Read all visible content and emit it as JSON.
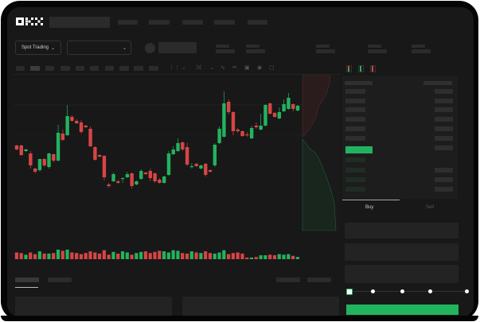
{
  "brand": {
    "logo": "OKX"
  },
  "market_selector": {
    "label": "Spot Trading",
    "icon": "chevron-down-icon"
  },
  "pair_selector": {
    "icon": "chevron-down-icon"
  },
  "order_panel": {
    "tabs": [
      "Buy",
      "Sell"
    ],
    "active_tab": "Buy",
    "slider_percent": 0,
    "slider_stops": 5
  },
  "colors": {
    "up": "#22b35e",
    "down": "#d64545",
    "background": "#181818",
    "accent": "#22b35e"
  },
  "toolbar_icons": [
    "candles-icon",
    "indicator-icon",
    "chevron-down-icon",
    "line-icon",
    "pencil-icon",
    "camera-icon",
    "settings-icon",
    "fullscreen-icon"
  ],
  "orderbook_view_icons": [
    "orderbook-both-icon",
    "orderbook-bids-icon",
    "orderbook-asks-icon"
  ],
  "chart_data": {
    "type": "candlestick",
    "candles": [
      [
        67,
        62,
        68,
        61
      ],
      [
        67,
        55,
        68,
        54
      ],
      [
        60,
        62,
        63,
        59
      ],
      [
        57,
        42,
        60,
        38
      ],
      [
        38,
        34,
        39,
        32
      ],
      [
        36,
        50,
        50,
        34
      ],
      [
        50,
        42,
        51,
        40
      ],
      [
        40,
        57,
        58,
        38
      ],
      [
        56,
        48,
        57,
        46
      ],
      [
        48,
        83,
        93,
        47
      ],
      [
        82,
        74,
        87,
        73
      ],
      [
        80,
        104,
        118,
        79
      ],
      [
        103,
        98,
        105,
        97
      ],
      [
        98,
        95,
        100,
        94
      ],
      [
        96,
        84,
        99,
        82
      ],
      [
        92,
        90,
        93,
        89
      ],
      [
        88,
        66,
        91,
        65
      ],
      [
        65,
        49,
        66,
        48
      ],
      [
        55,
        53,
        56,
        52
      ],
      [
        54,
        27,
        55,
        23
      ],
      [
        18,
        16,
        20,
        14
      ],
      [
        22,
        31,
        33,
        21
      ],
      [
        22,
        20,
        24,
        19
      ],
      [
        25,
        26,
        27,
        20
      ],
      [
        27,
        31,
        34,
        26
      ],
      [
        32,
        16,
        33,
        13
      ],
      [
        18,
        22,
        23,
        17
      ],
      [
        25,
        35,
        37,
        24
      ],
      [
        33,
        31,
        34,
        30
      ],
      [
        35,
        26,
        38,
        22
      ],
      [
        32,
        22,
        33,
        20
      ],
      [
        24,
        20,
        26,
        19
      ],
      [
        20,
        28,
        29,
        19
      ],
      [
        30,
        57,
        60,
        29
      ],
      [
        56,
        62,
        66,
        55
      ],
      [
        60,
        70,
        76,
        59
      ],
      [
        71,
        62,
        72,
        60
      ],
      [
        65,
        43,
        70,
        41
      ],
      [
        40,
        41,
        45,
        38
      ],
      [
        44,
        41,
        45,
        40
      ],
      [
        38,
        42,
        43,
        37
      ],
      [
        44,
        30,
        45,
        28
      ],
      [
        36,
        34,
        37,
        33
      ],
      [
        42,
        68,
        70,
        40
      ],
      [
        70,
        88,
        91,
        69
      ],
      [
        78,
        120,
        135,
        77
      ],
      [
        122,
        109,
        125,
        106
      ],
      [
        109,
        85,
        110,
        80
      ],
      [
        87,
        85,
        89,
        83
      ],
      [
        85,
        79,
        86,
        78
      ],
      [
        81,
        80,
        84,
        78
      ],
      [
        76,
        89,
        92,
        75
      ],
      [
        92,
        90,
        96,
        88
      ],
      [
        87,
        92,
        107,
        86
      ],
      [
        92,
        118,
        119,
        91
      ],
      [
        120,
        107,
        121,
        106
      ],
      [
        108,
        103,
        109,
        102
      ],
      [
        101,
        109,
        115,
        100
      ],
      [
        110,
        119,
        125,
        109
      ],
      [
        113,
        127,
        133,
        112
      ],
      [
        119,
        113,
        120,
        110
      ],
      [
        111,
        117,
        118,
        110
      ]
    ],
    "volume": [
      60,
      55,
      40,
      60,
      45,
      70,
      50,
      50,
      55,
      85,
      75,
      85,
      60,
      55,
      45,
      55,
      70,
      60,
      50,
      80,
      40,
      65,
      50,
      70,
      60,
      40,
      55,
      65,
      70,
      55,
      65,
      75,
      70,
      60,
      80,
      75,
      55,
      50,
      70,
      60,
      55,
      70,
      55,
      50,
      60,
      80,
      45,
      55,
      60,
      50,
      15,
      15,
      20,
      35,
      35,
      40,
      35,
      45,
      40,
      45,
      30,
      20
    ],
    "price_range": [
      0,
      150
    ]
  }
}
